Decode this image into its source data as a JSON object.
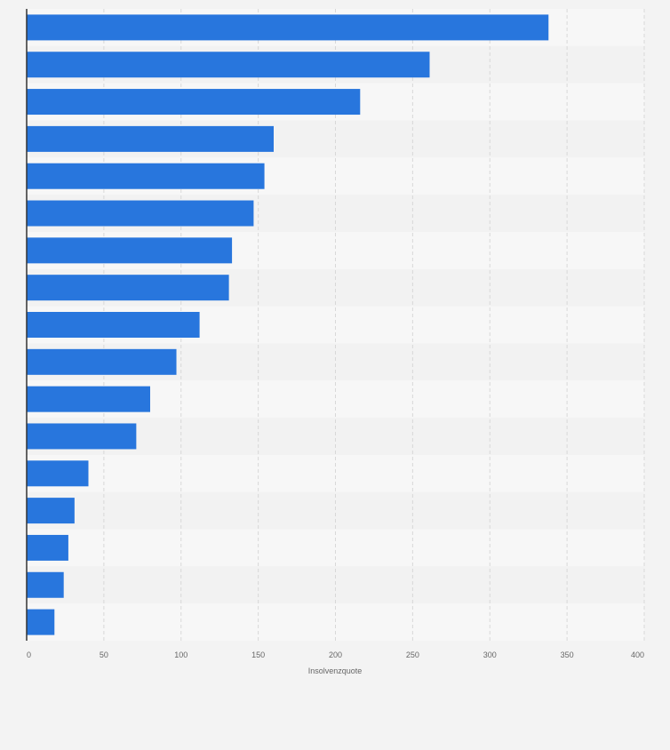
{
  "chart_data": {
    "type": "bar",
    "orientation": "horizontal",
    "title": "",
    "xlabel": "Insolvenzquote",
    "ylabel": "",
    "categories": [
      "",
      "",
      "",
      "",
      "",
      "",
      "",
      "",
      "",
      "",
      "",
      "",
      "",
      "",
      "",
      "",
      ""
    ],
    "values": [
      338,
      261,
      216,
      160,
      154,
      147,
      133,
      131,
      112,
      97,
      80,
      71,
      40,
      31,
      27,
      24,
      18
    ],
    "xlim": [
      0,
      400
    ],
    "ticks": [
      "0",
      "50",
      "100",
      "150",
      "200",
      "250",
      "300",
      "350",
      "400"
    ],
    "tick_values": [
      0,
      50,
      100,
      150,
      200,
      250,
      300,
      350,
      400
    ],
    "grid": true,
    "bar_color": "#2876dd",
    "stripe_colors": [
      "#f7f7f7",
      "#f2f2f2"
    ],
    "axis_color": "#333333",
    "text_color": "#666666"
  }
}
